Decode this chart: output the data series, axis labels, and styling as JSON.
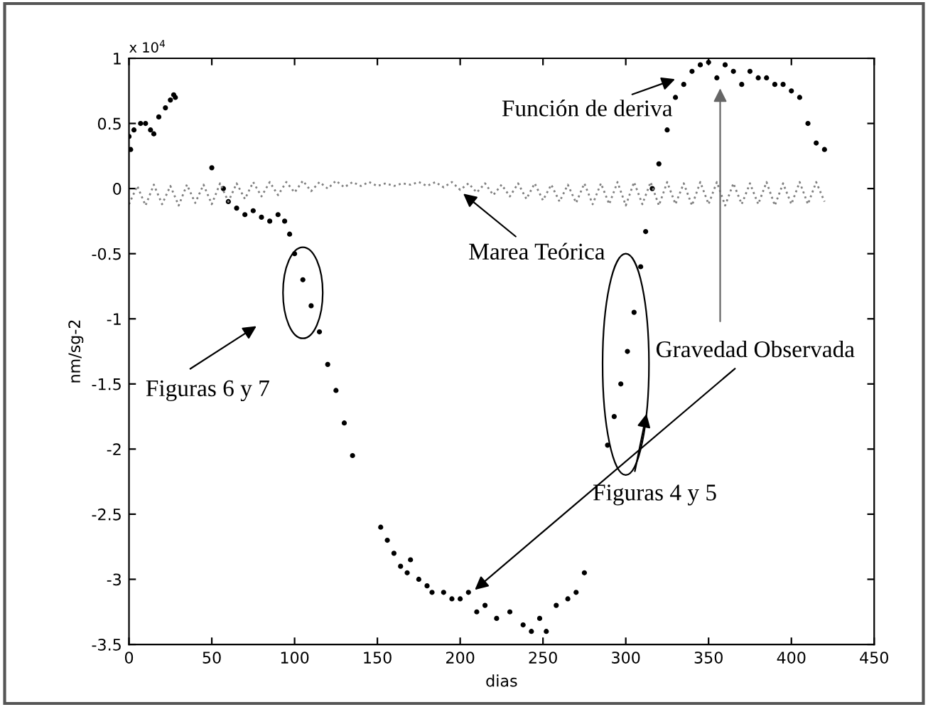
{
  "chart_data": {
    "type": "scatter",
    "xlabel": "dias",
    "ylabel": "nm/sg-2",
    "xlim": [
      0,
      450
    ],
    "xticks": [
      0,
      50,
      100,
      150,
      200,
      250,
      300,
      350,
      400,
      450
    ],
    "ylim": [
      -3.5,
      1
    ],
    "yticks": [
      -3.5,
      -3,
      -2.5,
      -2,
      -1.5,
      -1,
      -0.5,
      0,
      0.5,
      1
    ],
    "grid": false,
    "legend": false,
    "series": [
      {
        "marker": "circle",
        "color": "#000000",
        "x": [
          0,
          1,
          3,
          7,
          10,
          13,
          15,
          18,
          22,
          25,
          27,
          28,
          50,
          57,
          60,
          65,
          70,
          75,
          80,
          85,
          90,
          94,
          97,
          100,
          105,
          110,
          115,
          120,
          125,
          130,
          135,
          152,
          156,
          160,
          164,
          168,
          170,
          175,
          180,
          183,
          190,
          195,
          200,
          205,
          210,
          215,
          222,
          230,
          238,
          243,
          248,
          252,
          258,
          265,
          270,
          275,
          289,
          293,
          297,
          301,
          305,
          309,
          312,
          316,
          320,
          325,
          330,
          335,
          340,
          345,
          350,
          355,
          360,
          365,
          370,
          375,
          380,
          385,
          390,
          395,
          400,
          405,
          410,
          415,
          420
        ],
        "values": [
          0.4,
          0.3,
          0.45,
          0.5,
          0.5,
          0.45,
          0.42,
          0.55,
          0.62,
          0.68,
          0.72,
          0.7,
          0.16,
          0.0,
          -0.1,
          -0.15,
          -0.2,
          -0.17,
          -0.22,
          -0.25,
          -0.2,
          -0.25,
          -0.35,
          -0.5,
          -0.7,
          -0.9,
          -1.1,
          -1.35,
          -1.55,
          -1.8,
          -2.05,
          -2.6,
          -2.7,
          -2.8,
          -2.9,
          -2.95,
          -2.85,
          -3.0,
          -3.05,
          -3.1,
          -3.1,
          -3.15,
          -3.15,
          -3.1,
          -3.25,
          -3.2,
          -3.3,
          -3.25,
          -3.35,
          -3.4,
          -3.3,
          -3.4,
          -3.2,
          -3.15,
          -3.1,
          -2.95,
          -1.97,
          -1.75,
          -1.5,
          -1.25,
          -0.95,
          -0.6,
          -0.33,
          0.0,
          0.19,
          0.45,
          0.7,
          0.8,
          0.9,
          0.95,
          0.97,
          0.85,
          0.95,
          0.9,
          0.8,
          0.9,
          0.85,
          0.85,
          0.8,
          0.8,
          0.75,
          0.7,
          0.5,
          0.35,
          0.3
        ]
      },
      {
        "type": "line",
        "color": "#808080",
        "line_style": "dotted",
        "x": [
          0,
          5,
          10,
          15,
          20,
          25,
          30,
          35,
          40,
          45,
          50,
          55,
          60,
          65,
          70,
          75,
          80,
          85,
          90,
          95,
          100,
          105,
          110,
          115,
          120,
          125,
          130,
          135,
          140,
          145,
          150,
          155,
          160,
          165,
          170,
          175,
          180,
          185,
          190,
          195,
          200,
          205,
          210,
          215,
          220,
          225,
          230,
          235,
          240,
          245,
          250,
          255,
          260,
          265,
          270,
          275,
          280,
          285,
          290,
          295,
          300,
          305,
          310,
          315,
          320,
          325,
          330,
          335,
          340,
          345,
          350,
          355,
          360,
          365,
          370,
          375,
          380,
          385,
          390,
          395,
          400,
          405,
          410,
          415,
          420
        ],
        "values": [
          -0.12,
          0.02,
          -0.13,
          0.03,
          -0.12,
          0.02,
          -0.13,
          0.03,
          -0.11,
          0.03,
          -0.12,
          0.04,
          -0.1,
          0.04,
          -0.08,
          0.05,
          -0.06,
          0.05,
          -0.05,
          0.05,
          -0.03,
          0.06,
          -0.02,
          0.05,
          0.0,
          0.06,
          0.01,
          0.05,
          0.02,
          0.05,
          0.02,
          0.04,
          0.02,
          0.04,
          0.03,
          0.05,
          0.02,
          0.05,
          0.01,
          0.05,
          -0.01,
          0.04,
          -0.03,
          0.04,
          -0.05,
          0.03,
          -0.06,
          0.04,
          -0.08,
          0.04,
          -0.09,
          0.03,
          -0.1,
          0.03,
          -0.11,
          0.04,
          -0.12,
          0.04,
          -0.12,
          0.05,
          -0.13,
          0.05,
          -0.12,
          0.05,
          -0.13,
          0.05,
          -0.12,
          0.04,
          -0.13,
          0.05,
          -0.12,
          0.05,
          -0.13,
          0.04,
          -0.12,
          0.04,
          -0.12,
          0.05,
          -0.13,
          0.04,
          -0.12,
          0.05,
          -0.12,
          0.05,
          -0.1
        ]
      }
    ],
    "annotations": [
      {
        "text": "Función de deriva",
        "x": 332,
        "y": 0.85
      },
      {
        "text": "Marea Teórica",
        "x": 200,
        "y": -0.02
      },
      "Figuras 6 y 7",
      {
        "text": "Gravedad Observada",
        "x": 207,
        "y": -3.1
      },
      "Figuras 4 y 5",
      "x 10$^{4}$"
    ]
  }
}
